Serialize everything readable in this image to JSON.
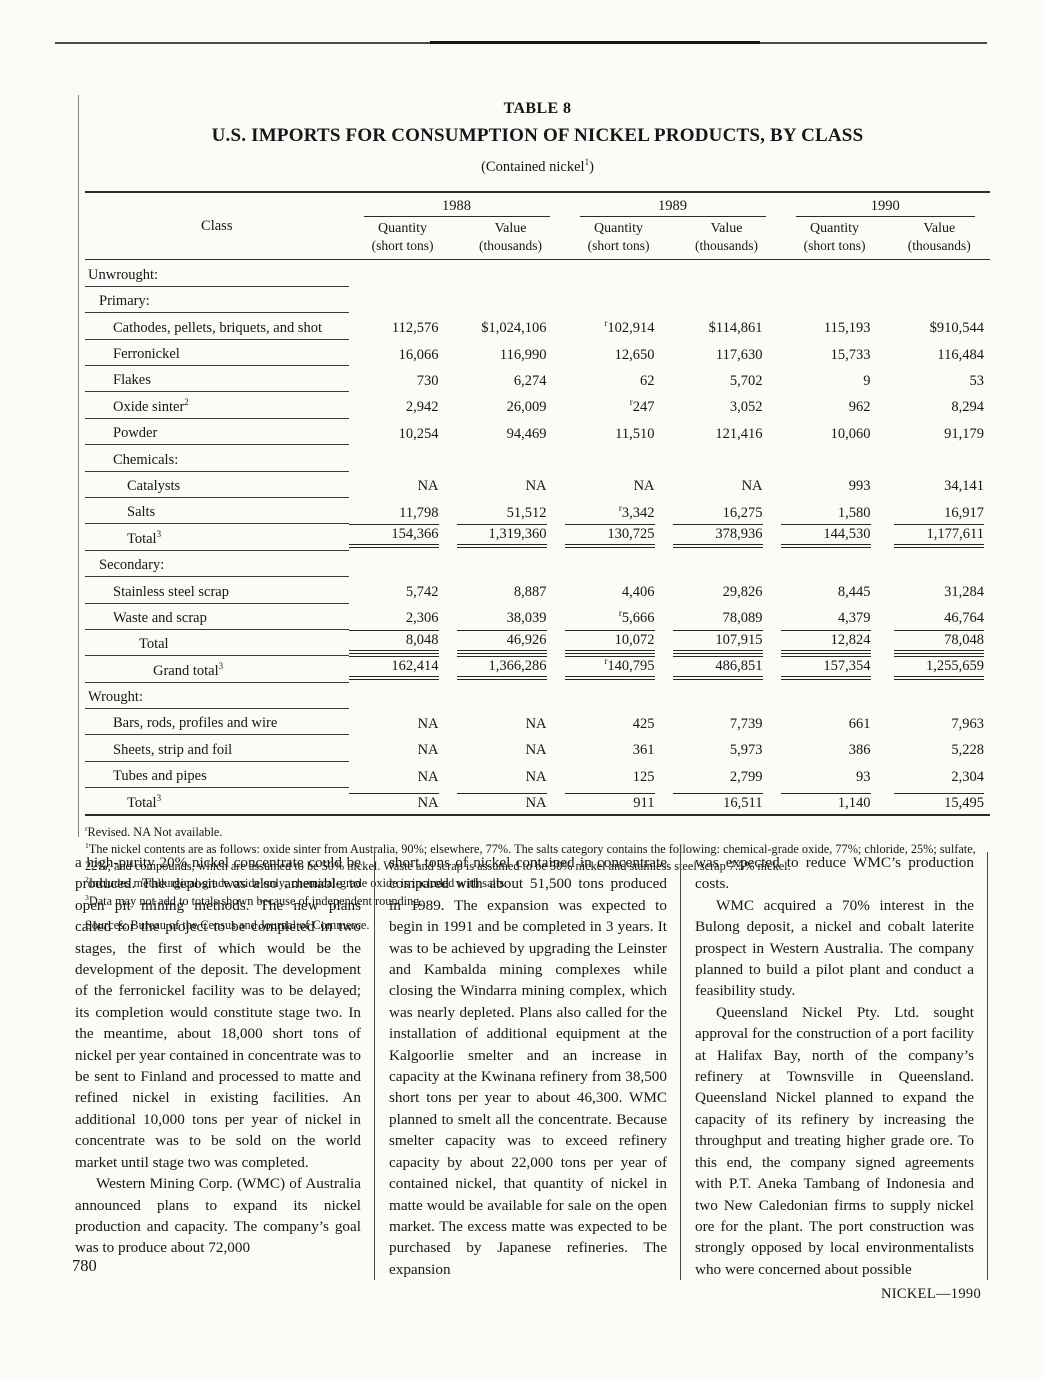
{
  "page": {
    "number": "780",
    "footer": "NICKEL—1990"
  },
  "table": {
    "caption": "TABLE 8",
    "title": "U.S. IMPORTS FOR CONSUMPTION OF NICKEL PRODUCTS, BY CLASS",
    "subtitle_pre": "(Contained nickel",
    "subtitle_sup": "1",
    "subtitle_post": ")",
    "class_header": "Class",
    "years": [
      "1988",
      "1989",
      "1990"
    ],
    "quantity_label": "Quantity",
    "quantity_unit": "(short tons)",
    "value_label": "Value",
    "value_unit": "(thousands)",
    "rows": [
      {
        "label": "Unwrought:",
        "indent": 0,
        "values": []
      },
      {
        "label": "Primary:",
        "indent": 1,
        "values": []
      },
      {
        "label": "Cathodes, pellets, briquets, and shot",
        "indent": 2,
        "values": [
          "112,576",
          "$1,024,106",
          "ʳ102,914",
          "$114,861",
          "115,193",
          "$910,544"
        ]
      },
      {
        "label": "Ferronickel",
        "indent": 2,
        "values": [
          "16,066",
          "116,990",
          "12,650",
          "117,630",
          "15,733",
          "116,484"
        ]
      },
      {
        "label": "Flakes",
        "indent": 2,
        "values": [
          "730",
          "6,274",
          "62",
          "5,702",
          "9",
          "53"
        ]
      },
      {
        "label": "Oxide sinter",
        "sup": "2",
        "indent": 2,
        "values": [
          "2,942",
          "26,009",
          "ʳ247",
          "3,052",
          "962",
          "8,294"
        ]
      },
      {
        "label": "Powder",
        "indent": 2,
        "values": [
          "10,254",
          "94,469",
          "11,510",
          "121,416",
          "10,060",
          "91,179"
        ]
      },
      {
        "label": "Chemicals:",
        "indent": 2,
        "values": []
      },
      {
        "label": "Catalysts",
        "indent": 3,
        "values": [
          "NA",
          "NA",
          "NA",
          "NA",
          "993",
          "34,141"
        ]
      },
      {
        "label": "Salts",
        "indent": 3,
        "values": [
          "11,798",
          "51,512",
          "ʳ3,342",
          "16,275",
          "1,580",
          "16,917"
        ]
      },
      {
        "label": "Total",
        "sup": "3",
        "indent": 3,
        "style": "total",
        "values": [
          "154,366",
          "1,319,360",
          "130,725",
          "378,936",
          "144,530",
          "1,177,611"
        ]
      },
      {
        "label": "Secondary:",
        "indent": 1,
        "values": []
      },
      {
        "label": "Stainless steel scrap",
        "indent": 2,
        "values": [
          "5,742",
          "8,887",
          "4,406",
          "29,826",
          "8,445",
          "31,284"
        ]
      },
      {
        "label": "Waste and scrap",
        "indent": 2,
        "values": [
          "2,306",
          "38,039",
          "ʳ5,666",
          "78,089",
          "4,379",
          "46,764"
        ]
      },
      {
        "label": "Total",
        "indent": 4,
        "style": "total",
        "values": [
          "8,048",
          "46,926",
          "10,072",
          "107,915",
          "12,824",
          "78,048"
        ]
      },
      {
        "label": "Grand total",
        "sup": "3",
        "indent": 5,
        "style": "total",
        "values": [
          "162,414",
          "1,366,286",
          "ʳ140,795",
          "486,851",
          "157,354",
          "1,255,659"
        ]
      },
      {
        "label": "Wrought:",
        "indent": 0,
        "values": []
      },
      {
        "label": "Bars, rods, profiles and wire",
        "indent": 2,
        "values": [
          "NA",
          "NA",
          "425",
          "7,739",
          "661",
          "7,963"
        ]
      },
      {
        "label": "Sheets, strip and foil",
        "indent": 2,
        "values": [
          "NA",
          "NA",
          "361",
          "5,973",
          "386",
          "5,228"
        ]
      },
      {
        "label": "Tubes and pipes",
        "indent": 2,
        "values": [
          "NA",
          "NA",
          "125",
          "2,799",
          "93",
          "2,304"
        ]
      },
      {
        "label": "Total",
        "sup": "3",
        "indent": 3,
        "style": "total-top",
        "values": [
          "NA",
          "NA",
          "911",
          "16,511",
          "1,140",
          "15,495"
        ]
      }
    ]
  },
  "footnotes": [
    {
      "sup": "r",
      "text": "Revised. NA Not available."
    },
    {
      "sup": "1",
      "text": "The nickel contents are as follows: oxide sinter from Australia, 90%; elsewhere, 77%. The salts category contains the following: chemical-grade oxide, 77%; chloride, 25%; sulfate, 22%; and compounds, which are assumed to be 50% nickel. Waste and scrap is assumed to be 50% nickel and stainless steel scrap 7.5% nickel."
    },
    {
      "sup": "2",
      "text": "Includes metallurgical-grade oxide only; chemical-grade oxide is included with salts."
    },
    {
      "sup": "3",
      "text": "Data may not add to totals shown because of independent rounding."
    }
  ],
  "sources": "Sources: Bureau of the Census and Journal of Commerce.",
  "body": {
    "columns": [
      {
        "paragraphs": [
          {
            "indent": false,
            "text": "a high-purity 20% nickel concentrate could be produced. The deposit was also amenable to open pit mining methods. The new plans called for the project to be completed in two stages, the first of which would be the development of the deposit. The development of the ferronickel facility was to be delayed; its completion would constitute stage two. In the meantime, about 18,000 short tons of nickel per year contained in concentrate was to be sent to Finland and processed to matte and refined nickel in existing facilities. An additional 10,000 tons per year of nickel in concentrate was to be sold on the world market until stage two was completed."
          },
          {
            "indent": true,
            "text": "Western Mining Corp. (WMC) of Australia announced plans to expand its nickel production and capacity. The company’s goal was to produce about 72,000"
          }
        ]
      },
      {
        "paragraphs": [
          {
            "indent": false,
            "text": "short tons of nickel contained in concentrate compared with about 51,500 tons produced in 1989. The expansion was expected to begin in 1991 and be completed in 3 years. It was to be achieved by upgrading the Leinster and Kambalda mining complexes while closing the Windarra mining complex, which was nearly depleted. Plans also called for the installation of additional equipment at the Kalgoorlie smelter and an increase in capacity at the Kwinana refinery from 38,500 short tons per year to about 46,300. WMC planned to smelt all the concentrate. Because smelter capacity was to exceed refinery capacity by about 22,000 tons per year of contained nickel, that quantity of nickel in matte would be available for sale on the open market. The excess matte was expected to be purchased by Japanese refineries. The expansion"
          }
        ]
      },
      {
        "paragraphs": [
          {
            "indent": false,
            "text": "was expected to reduce WMC’s production costs."
          },
          {
            "indent": true,
            "text": "WMC acquired a 70% interest in the Bulong deposit, a nickel and cobalt laterite prospect in Western Australia. The company planned to build a pilot plant and conduct a feasibility study."
          },
          {
            "indent": true,
            "text": "Queensland Nickel Pty. Ltd. sought approval for the construction of a port facility at Halifax Bay, north of the company’s refinery at Townsville in Queensland. Queensland Nickel planned to expand the capacity of its refinery by increasing the throughput and treating higher grade ore. To this end, the company signed agreements with P.T. Aneka Tambang of Indonesia and two New Caledonian firms to supply nickel ore for the plant. The port construction was strongly opposed by local environmentalists who were concerned about possible"
          }
        ]
      }
    ]
  }
}
